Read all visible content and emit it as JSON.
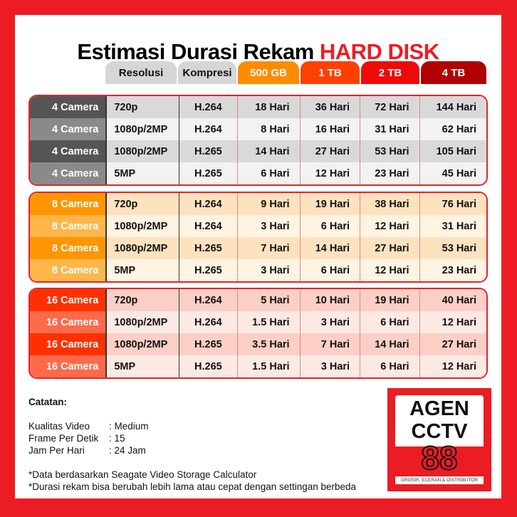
{
  "title": {
    "main": "Estimasi Durasi Rekam",
    "highlight": "HARD DISK"
  },
  "headers": [
    {
      "label": "Resolusi",
      "bg": "#d6d6d6",
      "fg": "#111"
    },
    {
      "label": "Kompresi",
      "bg": "#d6d6d6",
      "fg": "#111"
    },
    {
      "label": "500 GB",
      "bg": "#ff8c00",
      "fg": "#fff"
    },
    {
      "label": "1 TB",
      "bg": "#ff4000",
      "fg": "#fff"
    },
    {
      "label": "2 TB",
      "bg": "#ee0a0a",
      "fg": "#fff"
    },
    {
      "label": "4 TB",
      "bg": "#b00000",
      "fg": "#fff"
    }
  ],
  "groups": [
    {
      "colors": {
        "label": [
          "#555555",
          "#8a8a8a"
        ],
        "row": [
          "#d9d9d9",
          "#f2f2f2"
        ]
      },
      "rows": [
        [
          "4 Camera",
          "720p",
          "H.264",
          "18 Hari",
          "36 Hari",
          "72 Hari",
          "144 Hari"
        ],
        [
          "4 Camera",
          "1080p/2MP",
          "H.264",
          "8 Hari",
          "16 Hari",
          "31 Hari",
          "62 Hari"
        ],
        [
          "4 Camera",
          "1080p/2MP",
          "H.265",
          "14 Hari",
          "27 Hari",
          "53 Hari",
          "105 Hari"
        ],
        [
          "4 Camera",
          "5MP",
          "H.265",
          "6 Hari",
          "12 Hari",
          "23 Hari",
          "45 Hari"
        ]
      ]
    },
    {
      "colors": {
        "label": [
          "#ff9500",
          "#ffb64a"
        ],
        "row": [
          "#fde2bf",
          "#fff3e2"
        ]
      },
      "rows": [
        [
          "8 Camera",
          "720p",
          "H.264",
          "9 Hari",
          "19 Hari",
          "38 Hari",
          "76 Hari"
        ],
        [
          "8 Camera",
          "1080p/2MP",
          "H.264",
          "3 Hari",
          "6 Hari",
          "12 Hari",
          "31 Hari"
        ],
        [
          "8 Camera",
          "1080p/2MP",
          "H.265",
          "7 Hari",
          "14 Hari",
          "27 Hari",
          "53 Hari"
        ],
        [
          "8 Camera",
          "5MP",
          "H.265",
          "3 Hari",
          "6 Hari",
          "12 Hari",
          "23 Hari"
        ]
      ]
    },
    {
      "colors": {
        "label": [
          "#ff3000",
          "#ff6a4a"
        ],
        "row": [
          "#fbcfc5",
          "#fde9e4"
        ]
      },
      "rows": [
        [
          "16 Camera",
          "720p",
          "H.264",
          "5 Hari",
          "10 Hari",
          "19 Hari",
          "40 Hari"
        ],
        [
          "16 Camera",
          "1080p/2MP",
          "H.264",
          "1.5 Hari",
          "3 Hari",
          "6 Hari",
          "12 Hari"
        ],
        [
          "16 Camera",
          "1080p/2MP",
          "H.265",
          "3.5 Hari",
          "7 Hari",
          "14 Hari",
          "27 Hari"
        ],
        [
          "16 Camera",
          "5MP",
          "H.265",
          "1.5 Hari",
          "3 Hari",
          "6 Hari",
          "12 Hari"
        ]
      ]
    }
  ],
  "notes": {
    "heading": "Catatan:",
    "items": [
      {
        "key": "Kualitas Video",
        "value": ": Medium"
      },
      {
        "key": "Frame Per Detik",
        "value": ": 15"
      },
      {
        "key": "Jam Per Hari",
        "value": ": 24 Jam"
      }
    ],
    "footnotes": [
      "*Data berdasarkan Seagate Video Storage Calculator",
      "*Durasi rekam bisa berubah lebih lama atau cepat dengan settingan berbeda"
    ]
  },
  "logo": {
    "line1": "AGEN",
    "line2": "CCTV",
    "number": "88",
    "tagline": "GROSIR, ECERAN & DISTRIBUTOR"
  }
}
